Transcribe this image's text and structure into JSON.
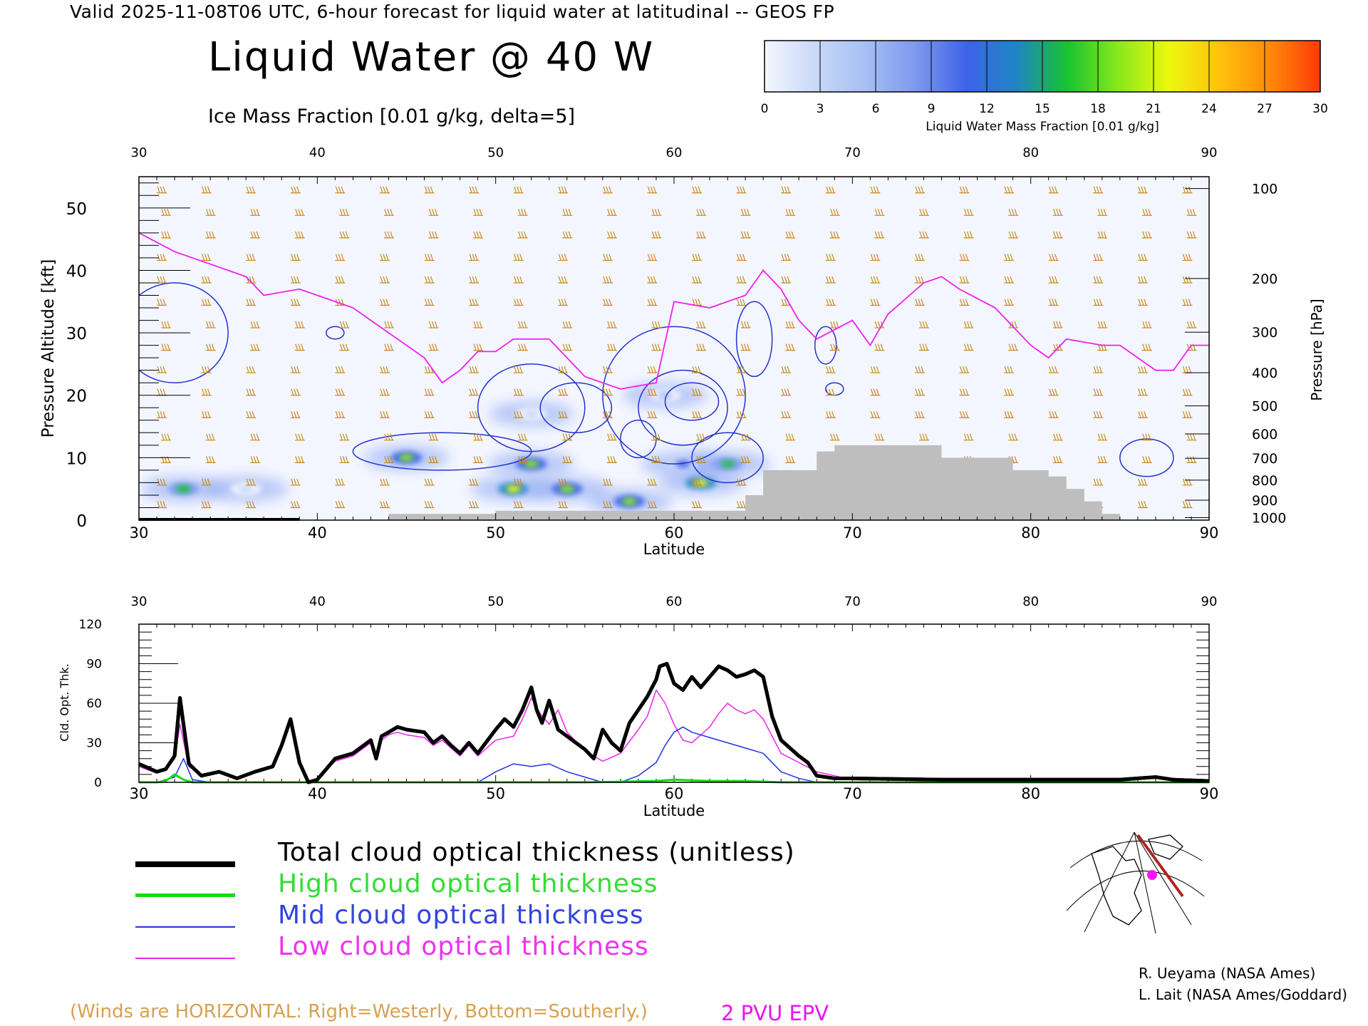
{
  "header": {
    "valid_line": "Valid 2025-11-08T06 UTC, 6-hour forecast for liquid water at latitudinal -- GEOS FP",
    "title": "Liquid Water @ 40 W",
    "contour_label": "Ice Mass Fraction [0.01 g/kg, delta=5]"
  },
  "colorbar": {
    "ticks": [
      "0",
      "3",
      "6",
      "9",
      "12",
      "15",
      "18",
      "21",
      "24",
      "27",
      "30"
    ],
    "label": "Liquid Water Mass Fraction [0.01 g/kg]",
    "colors": [
      "#f4f6ff",
      "#c9d8f8",
      "#a7bff4",
      "#7d98ef",
      "#3d63ea",
      "#1e86c0",
      "#17c430",
      "#88e81b",
      "#ecf80e",
      "#ffc20c",
      "#ff8a0b",
      "#ff3a08"
    ]
  },
  "colors": {
    "wind_barbs": "#c98a1e",
    "epv": "#ee22ee",
    "ice_contour": "#2233cc",
    "terrain": "#bebebe",
    "total": "#000000",
    "high": "#11dd11",
    "mid": "#2233dd",
    "low": "#ee22ee"
  },
  "chart_data": [
    {
      "type": "heatmap",
      "title": "Liquid Water @ 40 W",
      "xlabel": "Latitude",
      "ylabel": "Pressure Altitude [kft]",
      "ylabel_right": "Pressure [hPa]",
      "xlim": [
        30,
        90
      ],
      "ylim": [
        0,
        55
      ],
      "x_ticks": [
        "30",
        "40",
        "50",
        "60",
        "70",
        "80",
        "90"
      ],
      "y_ticks": [
        "0",
        "10",
        "20",
        "30",
        "40",
        "50"
      ],
      "pressure_ticks": [
        {
          "label": "100",
          "kft": 53.1
        },
        {
          "label": "200",
          "kft": 38.7
        },
        {
          "label": "300",
          "kft": 30.1
        },
        {
          "label": "400",
          "kft": 23.6
        },
        {
          "label": "500",
          "kft": 18.3
        },
        {
          "label": "600",
          "kft": 13.8
        },
        {
          "label": "700",
          "kft": 9.9
        },
        {
          "label": "800",
          "kft": 6.4
        },
        {
          "label": "900",
          "kft": 3.2
        },
        {
          "label": "1000",
          "kft": 0.4
        }
      ],
      "liquid_water_blobs": [
        {
          "lat": 32.5,
          "kft": 5.0,
          "value": 15
        },
        {
          "lat": 45.0,
          "kft": 10.0,
          "value": 18
        },
        {
          "lat": 51.0,
          "kft": 5.0,
          "value": 21
        },
        {
          "lat": 52.0,
          "kft": 9.0,
          "value": 20
        },
        {
          "lat": 54.0,
          "kft": 5.0,
          "value": 18
        },
        {
          "lat": 57.5,
          "kft": 3.0,
          "value": 18
        },
        {
          "lat": 61.5,
          "kft": 6.0,
          "value": 21
        },
        {
          "lat": 63.0,
          "kft": 9.0,
          "value": 16
        },
        {
          "lat": 60.5,
          "kft": 9.0,
          "value": 12
        },
        {
          "lat": 59.5,
          "kft": 20.0,
          "value": 6
        },
        {
          "lat": 52.0,
          "kft": 17.0,
          "value": 4
        },
        {
          "lat": 36.0,
          "kft": 5.0,
          "value": 4
        }
      ],
      "epv_2pvu_kft": [
        [
          30,
          46
        ],
        [
          32,
          43
        ],
        [
          34,
          41
        ],
        [
          36,
          39
        ],
        [
          37,
          36
        ],
        [
          39,
          37
        ],
        [
          40,
          36
        ],
        [
          42,
          34
        ],
        [
          44,
          30
        ],
        [
          46,
          26
        ],
        [
          47,
          22
        ],
        [
          48,
          24
        ],
        [
          49,
          27
        ],
        [
          50,
          27
        ],
        [
          51,
          29
        ],
        [
          53,
          29
        ],
        [
          55,
          23
        ],
        [
          57,
          21
        ],
        [
          59,
          22
        ],
        [
          60,
          35
        ],
        [
          62,
          34
        ],
        [
          64,
          36
        ],
        [
          65,
          40
        ],
        [
          66,
          37
        ],
        [
          67,
          32
        ],
        [
          68,
          29
        ],
        [
          70,
          32
        ],
        [
          71,
          28
        ],
        [
          72,
          33
        ],
        [
          74,
          38
        ],
        [
          75,
          39
        ],
        [
          76,
          37
        ],
        [
          78,
          34
        ],
        [
          80,
          28
        ],
        [
          81,
          26
        ],
        [
          82,
          29
        ],
        [
          84,
          28
        ],
        [
          85,
          28
        ],
        [
          86,
          26
        ],
        [
          87,
          24
        ],
        [
          88,
          24
        ],
        [
          89,
          28
        ],
        [
          90,
          28
        ]
      ],
      "terrain_kft": [
        [
          30,
          0
        ],
        [
          44,
          0
        ],
        [
          44,
          1
        ],
        [
          50,
          1
        ],
        [
          50,
          1.5
        ],
        [
          64,
          1.5
        ],
        [
          64,
          4
        ],
        [
          65,
          4
        ],
        [
          65,
          8
        ],
        [
          68,
          8
        ],
        [
          68,
          11
        ],
        [
          69,
          11
        ],
        [
          69,
          12
        ],
        [
          75,
          12
        ],
        [
          75,
          10
        ],
        [
          79,
          10
        ],
        [
          79,
          8
        ],
        [
          81,
          8
        ],
        [
          81,
          7
        ],
        [
          82,
          7
        ],
        [
          82,
          5
        ],
        [
          83,
          5
        ],
        [
          83,
          3
        ],
        [
          84,
          3
        ],
        [
          84,
          1
        ],
        [
          85,
          1
        ],
        [
          85,
          0
        ],
        [
          90,
          0
        ]
      ]
    },
    {
      "type": "line",
      "xlabel": "Latitude",
      "ylabel": "Cld. Opt. Thk.",
      "xlim": [
        30,
        90
      ],
      "ylim": [
        0,
        120
      ],
      "x_ticks": [
        "30",
        "40",
        "50",
        "60",
        "70",
        "80",
        "90"
      ],
      "y_ticks": [
        "0",
        "30",
        "60",
        "90",
        "120"
      ],
      "series": [
        {
          "name": "Total cloud optical thickness (unitless)",
          "color": "#000000",
          "width": 5,
          "x": [
            30,
            31,
            31.5,
            32,
            32.3,
            32.8,
            33.5,
            34.5,
            35.5,
            36.5,
            37.5,
            38,
            38.5,
            39,
            39.5,
            40,
            40.5,
            41,
            42,
            43,
            43.3,
            43.6,
            44,
            44.5,
            45,
            46,
            46.5,
            47,
            47.5,
            48,
            48.5,
            49,
            50,
            50.5,
            51,
            51.5,
            52,
            52.3,
            52.6,
            53,
            53.5,
            54,
            54.5,
            55,
            55.5,
            56,
            56.5,
            57,
            57.5,
            58,
            58.5,
            59,
            59.2,
            59.6,
            60,
            60.5,
            61,
            61.5,
            62,
            62.5,
            63,
            63.5,
            64,
            64.5,
            65,
            65.5,
            66,
            66.5,
            67,
            67.5,
            68,
            69,
            70,
            75,
            80,
            85,
            87,
            88,
            90
          ],
          "y": [
            14,
            8,
            10,
            20,
            64,
            14,
            5,
            8,
            3,
            8,
            12,
            28,
            48,
            15,
            0,
            2,
            10,
            18,
            22,
            32,
            18,
            35,
            38,
            42,
            40,
            38,
            30,
            35,
            28,
            22,
            30,
            22,
            40,
            48,
            42,
            55,
            72,
            55,
            45,
            62,
            40,
            35,
            30,
            25,
            18,
            40,
            30,
            24,
            45,
            55,
            65,
            78,
            88,
            90,
            75,
            70,
            80,
            72,
            80,
            88,
            85,
            80,
            82,
            85,
            80,
            50,
            32,
            26,
            20,
            15,
            5,
            3,
            3,
            2,
            2,
            2,
            4,
            2,
            1
          ]
        },
        {
          "name": "High cloud optical thickness",
          "color": "#11dd11",
          "width": 3,
          "x": [
            30,
            31,
            31.5,
            32,
            32.5,
            33,
            40,
            50,
            55,
            59,
            60,
            62,
            64,
            66,
            68,
            70,
            80,
            90
          ],
          "y": [
            0,
            0,
            1,
            6,
            2,
            0,
            0,
            0,
            0,
            1,
            2,
            1,
            1,
            0,
            0,
            0,
            0,
            0
          ]
        },
        {
          "name": "Mid cloud optical thickness",
          "color": "#2233dd",
          "width": 1.5,
          "x": [
            30,
            31,
            32,
            32.5,
            33,
            34,
            40,
            44,
            48,
            49,
            50,
            51,
            52,
            53,
            54,
            55,
            56,
            57,
            58,
            59,
            59.5,
            60,
            60.5,
            61,
            62,
            63,
            64,
            65,
            66,
            67,
            68,
            70,
            90
          ],
          "y": [
            0,
            0,
            4,
            18,
            2,
            0,
            0,
            0,
            0,
            0,
            8,
            14,
            12,
            14,
            8,
            4,
            0,
            0,
            5,
            15,
            28,
            38,
            42,
            38,
            34,
            30,
            26,
            22,
            8,
            3,
            0,
            0,
            0
          ]
        },
        {
          "name": "Low cloud optical thickness",
          "color": "#ee22ee",
          "width": 1.5,
          "x": [
            30,
            31,
            31.5,
            32,
            32.3,
            32.8,
            33.5,
            34.5,
            35.5,
            36.5,
            37.5,
            38,
            38.5,
            39,
            39.5,
            40,
            40.5,
            41,
            42,
            43,
            43.3,
            43.6,
            44,
            44.5,
            45,
            46,
            46.5,
            47,
            47.5,
            48,
            48.5,
            49,
            50,
            51,
            51.5,
            52,
            52.5,
            53,
            53.5,
            54,
            55,
            56,
            57,
            58,
            58.5,
            59,
            59.5,
            60,
            60.5,
            61,
            62,
            62.5,
            63,
            63.5,
            64,
            64.5,
            65,
            66,
            67,
            68,
            70,
            90
          ],
          "y": [
            12,
            7,
            9,
            18,
            44,
            12,
            5,
            8,
            3,
            8,
            12,
            26,
            45,
            14,
            0,
            2,
            9,
            16,
            20,
            30,
            17,
            32,
            36,
            38,
            36,
            34,
            28,
            32,
            26,
            20,
            28,
            20,
            32,
            35,
            48,
            64,
            52,
            44,
            55,
            38,
            24,
            16,
            22,
            40,
            50,
            70,
            60,
            44,
            32,
            30,
            42,
            52,
            60,
            55,
            52,
            55,
            48,
            22,
            15,
            8,
            2,
            0
          ]
        }
      ]
    }
  ],
  "legend": {
    "total": "Total cloud optical thickness (unitless)",
    "high": "High cloud optical thickness",
    "mid": "Mid cloud optical thickness",
    "low": "Low cloud optical thickness"
  },
  "footer": {
    "winds_note": "(Winds are HORIZONTAL: Right=Westerly, Bottom=Southerly.)",
    "epv_label": "2 PVU EPV",
    "credit1": "R. Ueyama (NASA Ames)",
    "credit2": "L. Lait (NASA Ames/Goddard)"
  }
}
